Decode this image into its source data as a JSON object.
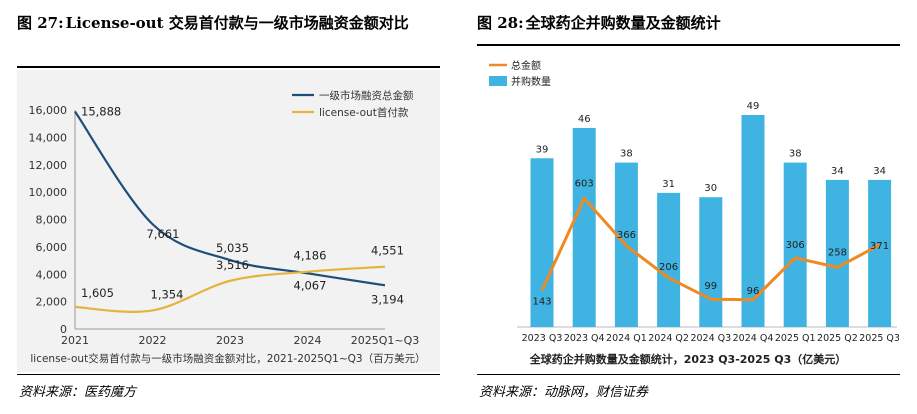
{
  "left": {
    "figure_number": "图 27:",
    "title": "License-out 交易首付款与一级市场融资金额对比",
    "source": "资料来源：医药魔方"
  },
  "right": {
    "figure_number": "图 28:",
    "title": "全球药企并购数量及金额统计",
    "source": "资料来源：动脉网，财信证券"
  },
  "chart_data": [
    {
      "type": "line",
      "title": "",
      "caption": "license-out交易首付款与一级市场融资金额对比，2021-2025Q1~Q3（百万美元）",
      "categories": [
        "2021",
        "2022",
        "2023",
        "2024",
        "2025Q1~Q3"
      ],
      "y_ticks": [
        "0",
        "2,000",
        "4,000",
        "6,000",
        "8,000",
        "10,000",
        "12,000",
        "14,000",
        "16,000"
      ],
      "ylim": [
        0,
        16000
      ],
      "legend_position": "top-right",
      "series": [
        {
          "name": "一级市场融资总金额",
          "color": "#1f4e79",
          "values": [
            15888,
            7661,
            5035,
            4067,
            3194
          ],
          "labels": [
            "15,888",
            "7,661",
            "5,035",
            "4,067",
            "3,194"
          ]
        },
        {
          "name": "license-out首付款",
          "color": "#e6b43c",
          "values": [
            1605,
            1354,
            3516,
            4186,
            4551
          ],
          "labels": [
            "1,605",
            "1,354",
            "3,516",
            "4,186",
            "4,551"
          ]
        }
      ]
    },
    {
      "type": "bar",
      "title": "",
      "caption": "全球药企并购数量及金额统计，2023 Q3-2025 Q3（亿美元）",
      "categories": [
        "2023 Q3",
        "2023 Q4",
        "2024 Q1",
        "2024 Q2",
        "2024 Q3",
        "2024 Q4",
        "2025 Q1",
        "2025 Q2",
        "2025 Q3"
      ],
      "legend_position": "top-left",
      "series": [
        {
          "name": "并购数量",
          "kind": "bar",
          "color": "#3fb3e2",
          "values": [
            39,
            46,
            38,
            31,
            30,
            49,
            38,
            34,
            34
          ],
          "ylim": [
            0,
            49
          ]
        },
        {
          "name": "总金额",
          "kind": "line",
          "color": "#ef8a22",
          "values": [
            143,
            603,
            366,
            206,
            99,
            96,
            306,
            258,
            371
          ],
          "ylim": [
            0,
            900
          ]
        }
      ]
    }
  ]
}
